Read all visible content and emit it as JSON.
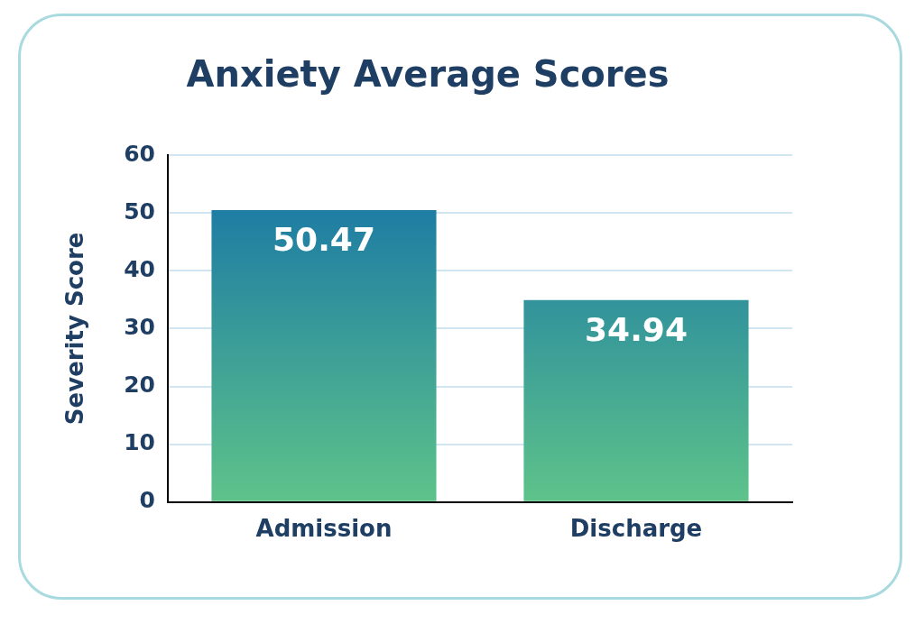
{
  "chart_data": {
    "type": "bar",
    "title": "Anxiety Average Scores",
    "y_label": "Severity Score",
    "categories": [
      "Admission",
      "Discharge"
    ],
    "values": [
      50.47,
      34.94
    ],
    "color": "#1270a8",
    "ylim": [
      0,
      60
    ],
    "yticks": [
      0,
      10,
      20,
      30,
      40,
      50,
      60
    ],
    "grid": true,
    "data_labels": true
  }
}
